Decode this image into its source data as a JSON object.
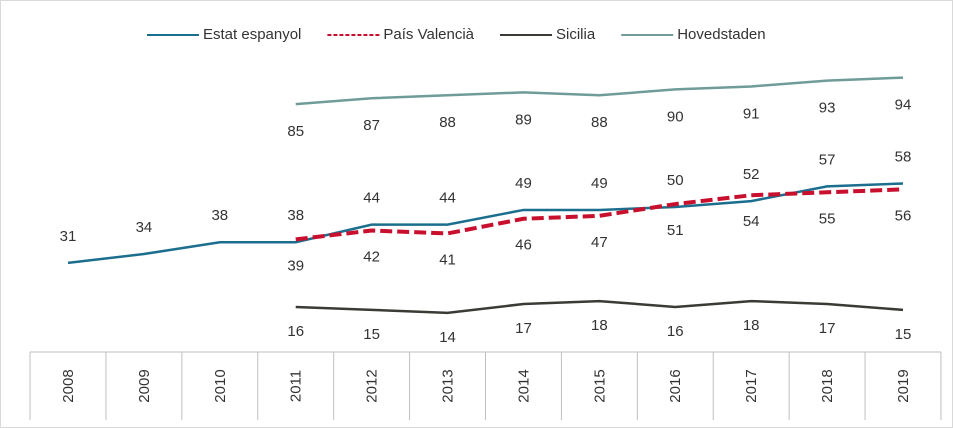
{
  "chart_data": {
    "type": "line",
    "categories": [
      "2008",
      "2009",
      "2010",
      "2011",
      "2012",
      "2013",
      "2014",
      "2015",
      "2016",
      "2017",
      "2018",
      "2019"
    ],
    "series": [
      {
        "name": "Estat espanyol",
        "color": "#1c6e8f",
        "values": [
          31,
          34,
          38,
          38,
          44,
          44,
          49,
          49,
          50,
          52,
          57,
          58
        ]
      },
      {
        "name": "País Valencià",
        "color": "#c8102e",
        "dashed": true,
        "values": [
          null,
          null,
          null,
          39,
          42,
          41,
          46,
          47,
          51,
          54,
          55,
          56
        ]
      },
      {
        "name": "Sicilia",
        "color": "#3b3a35",
        "values": [
          null,
          null,
          null,
          16,
          15,
          14,
          17,
          18,
          16,
          18,
          17,
          15
        ]
      },
      {
        "name": "Hovedstaden",
        "color": "#6f9c98",
        "values": [
          null,
          null,
          null,
          85,
          87,
          88,
          89,
          88,
          90,
          91,
          93,
          94
        ]
      }
    ],
    "ylim": [
      0,
      100
    ]
  }
}
